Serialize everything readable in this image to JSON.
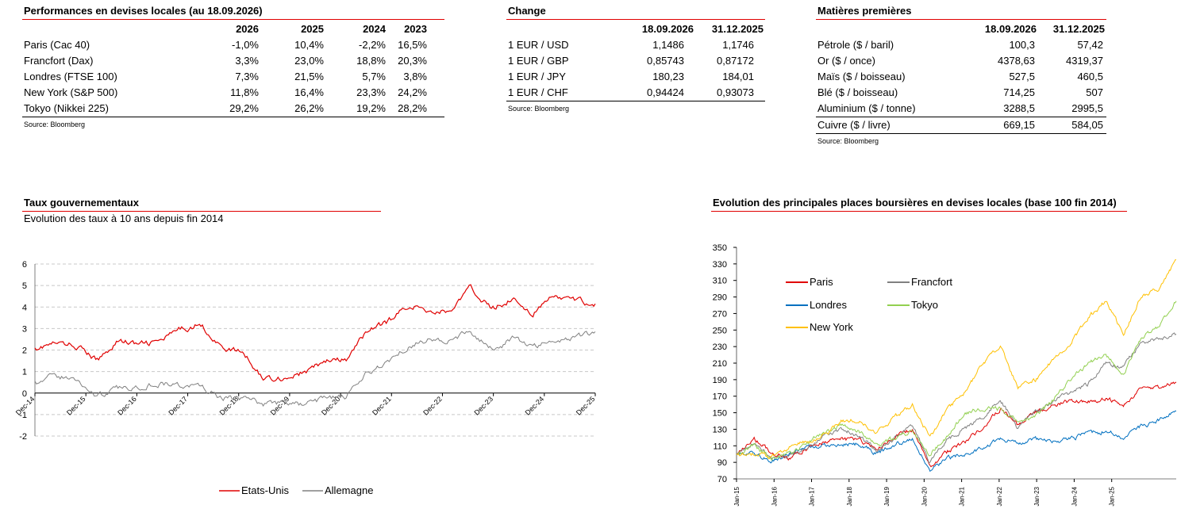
{
  "perf": {
    "title": "Performances en devises locales (au 18.09.2026)",
    "headers": [
      "",
      "2026",
      "2025",
      "2024",
      "2023"
    ],
    "rows": [
      [
        "Paris (Cac 40)",
        "-1,0%",
        "10,4%",
        "-2,2%",
        "16,5%"
      ],
      [
        "Francfort (Dax)",
        "3,3%",
        "23,0%",
        "18,8%",
        "20,3%"
      ],
      [
        "Londres (FTSE 100)",
        "7,3%",
        "21,5%",
        "5,7%",
        "3,8%"
      ],
      [
        "New York (S&P 500)",
        "11,8%",
        "16,4%",
        "23,3%",
        "24,2%"
      ],
      [
        "Tokyo (Nikkei 225)",
        "29,2%",
        "26,2%",
        "19,2%",
        "28,2%"
      ]
    ],
    "source": "Source: Bloomberg"
  },
  "change": {
    "title": "Change",
    "headers": [
      "",
      "18.09.2026",
      "31.12.2025"
    ],
    "rows": [
      [
        "1 EUR / USD",
        "1,1486",
        "1,1746"
      ],
      [
        "1 EUR / GBP",
        "0,85743",
        "0,87172"
      ],
      [
        "1 EUR / JPY",
        "180,23",
        "184,01"
      ],
      [
        "1 EUR / CHF",
        "0,94424",
        "0,93073"
      ]
    ],
    "source": "Source: Bloomberg"
  },
  "mp": {
    "title": "Matières premières",
    "headers": [
      "",
      "18.09.2026",
      "31.12.2025"
    ],
    "rows": [
      [
        "Pétrole ($ / baril)",
        "100,3",
        "57,42"
      ],
      [
        "Or ($ / once)",
        "4378,63",
        "4319,37"
      ],
      [
        "Maïs ($ / boisseau)",
        "527,5",
        "460,5"
      ],
      [
        "Blé ($ / boisseau)",
        "714,25",
        "507"
      ],
      [
        "Aluminium ($ / tonne)",
        "3288,5",
        "2995,5"
      ],
      [
        "Cuivre ($ / livre)",
        "669,15",
        "584,05"
      ]
    ],
    "source": "Source: Bloomberg"
  },
  "taux": {
    "title": "Taux gouvernementaux",
    "subtitle": "Evolution des taux à 10 ans depuis fin 2014"
  },
  "bourses": {
    "title": "Evolution des principales places boursières en devises locales (base 100 fin 2014)"
  },
  "chart_data": [
    {
      "type": "line",
      "ylim": [
        -2,
        6
      ],
      "yticks": [
        -2,
        -1,
        0,
        1,
        2,
        3,
        4,
        5,
        6
      ],
      "xticks": [
        "Dec-14",
        "Dec-15",
        "Dec-16",
        "Dec-17",
        "Dec-18",
        "Dec-19",
        "Dec-20",
        "Dec-21",
        "Dec-22",
        "Dec-23",
        "Dec-24",
        "Dec-25"
      ],
      "grid": "horizontal dashed",
      "legend": "bottom",
      "x": [
        "Dec-14",
        "Jun-15",
        "Dec-15",
        "Jun-16",
        "Dec-16",
        "Jun-17",
        "Dec-17",
        "Jun-18",
        "Nov-18",
        "Jun-19",
        "Dec-19",
        "Mar-20",
        "Jun-20",
        "Dec-20",
        "Jun-21",
        "Dec-21",
        "Apr-22",
        "Jun-22",
        "Oct-22",
        "Dec-22",
        "Jun-23",
        "Oct-23",
        "Dec-23",
        "Jun-24",
        "Sep-24",
        "Dec-24",
        "Jun-25",
        "Dec-25"
      ],
      "series": [
        {
          "name": "Etats-Unis",
          "color": "#e00000",
          "values": [
            2.1,
            2.3,
            2.2,
            1.5,
            2.45,
            2.25,
            2.4,
            2.95,
            3.2,
            2.1,
            1.9,
            0.7,
            0.7,
            0.95,
            1.5,
            1.5,
            2.9,
            3.3,
            4.1,
            3.8,
            3.8,
            4.9,
            3.9,
            4.4,
            3.7,
            4.5,
            4.3,
            4.15
          ]
        },
        {
          "name": "Allemagne",
          "color": "#808080",
          "values": [
            0.55,
            0.8,
            0.6,
            -0.15,
            0.2,
            0.3,
            0.45,
            0.35,
            0.3,
            -0.3,
            -0.2,
            -0.5,
            -0.45,
            -0.55,
            -0.2,
            -0.2,
            0.9,
            1.5,
            2.2,
            2.5,
            2.4,
            2.9,
            2.0,
            2.5,
            2.2,
            2.4,
            2.6,
            2.85
          ]
        }
      ]
    },
    {
      "type": "line",
      "ylim": [
        70,
        350
      ],
      "yticks": [
        70,
        90,
        110,
        130,
        150,
        170,
        190,
        210,
        230,
        250,
        270,
        290,
        310,
        330,
        350
      ],
      "xticks": [
        "Jan-15",
        "Jan-16",
        "Jan-17",
        "Jan-18",
        "Jan-19",
        "Jan-20",
        "Jan-21",
        "Jan-22",
        "Jan-23",
        "Jan-24",
        "Jan-25"
      ],
      "legend": "top-left",
      "x": [
        "Jan-15",
        "Jul-15",
        "Jan-16",
        "Jul-16",
        "Jan-17",
        "Jul-17",
        "Jan-18",
        "Jul-18",
        "Jan-19",
        "Jul-19",
        "Jan-20",
        "Mar-20",
        "Jul-20",
        "Jan-21",
        "Jul-21",
        "Jan-22",
        "Jul-22",
        "Jan-23",
        "Jul-23",
        "Jan-24",
        "Jul-24",
        "Jan-25",
        "Apr-25",
        "Jul-25",
        "Jan-26",
        "Sep-26"
      ],
      "series": [
        {
          "name": "Paris",
          "color": "#e00000",
          "values": [
            100,
            118,
            102,
            95,
            106,
            115,
            118,
            117,
            106,
            120,
            130,
            85,
            103,
            115,
            133,
            155,
            135,
            150,
            158,
            165,
            163,
            167,
            160,
            178,
            180,
            187
          ]
        },
        {
          "name": "Francfort",
          "color": "#808080",
          "values": [
            100,
            115,
            96,
            97,
            108,
            123,
            130,
            122,
            103,
            120,
            135,
            90,
            118,
            130,
            145,
            165,
            132,
            150,
            165,
            175,
            185,
            210,
            205,
            235,
            240,
            245
          ]
        },
        {
          "name": "Londres",
          "color": "#0070c0",
          "values": [
            100,
            100,
            92,
            100,
            108,
            110,
            112,
            112,
            100,
            112,
            118,
            80,
            95,
            100,
            108,
            118,
            114,
            118,
            115,
            118,
            125,
            128,
            120,
            133,
            140,
            152
          ]
        },
        {
          "name": "Tokyo",
          "color": "#92d050",
          "values": [
            100,
            110,
            95,
            100,
            115,
            125,
            135,
            127,
            110,
            120,
            128,
            100,
            122,
            150,
            155,
            155,
            140,
            145,
            165,
            190,
            210,
            220,
            195,
            240,
            255,
            285
          ]
        },
        {
          "name": "New York",
          "color": "#ffc000",
          "values": [
            100,
            100,
            97,
            108,
            115,
            123,
            140,
            140,
            125,
            145,
            160,
            120,
            155,
            175,
            210,
            230,
            180,
            190,
            215,
            235,
            265,
            285,
            245,
            290,
            300,
            335
          ]
        }
      ]
    }
  ]
}
